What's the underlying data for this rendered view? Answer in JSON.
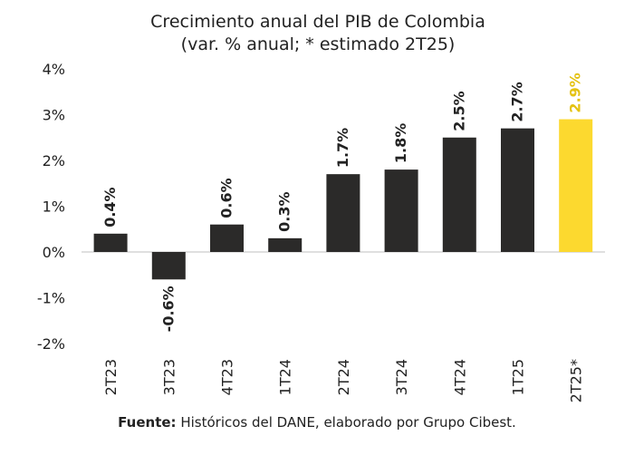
{
  "chart_data": {
    "type": "bar",
    "title_line1": "Crecimiento anual del PIB de Colombia",
    "title_line2": "(var. % anual; * estimado 2T25)",
    "categories": [
      "2T23",
      "3T23",
      "4T23",
      "1T24",
      "2T24",
      "3T24",
      "4T24",
      "1T25",
      "2T25*"
    ],
    "values": [
      0.4,
      -0.6,
      0.6,
      0.3,
      1.7,
      1.8,
      2.5,
      2.7,
      2.9
    ],
    "value_labels": [
      "0.4%",
      "-0.6%",
      "0.6%",
      "0.3%",
      "1.7%",
      "1.8%",
      "2.5%",
      "2.7%",
      "2.9%"
    ],
    "highlight_index": 8,
    "ylim": [
      -2,
      4
    ],
    "yticks": [
      4,
      3,
      2,
      1,
      0,
      -1,
      -2
    ],
    "ytick_labels": [
      "4%",
      "3%",
      "2%",
      "1%",
      "0%",
      "-1%",
      "-2%"
    ],
    "xlabel": "",
    "ylabel": "",
    "grid": false,
    "colors": {
      "bar": "#2b2a29",
      "highlight": "#fcd92f",
      "highlight_label": "#e4c212",
      "axis": "#bfbfbf"
    }
  },
  "source": {
    "label": "Fuente:",
    "text": "Históricos del DANE, elaborado por Grupo Cibest."
  }
}
